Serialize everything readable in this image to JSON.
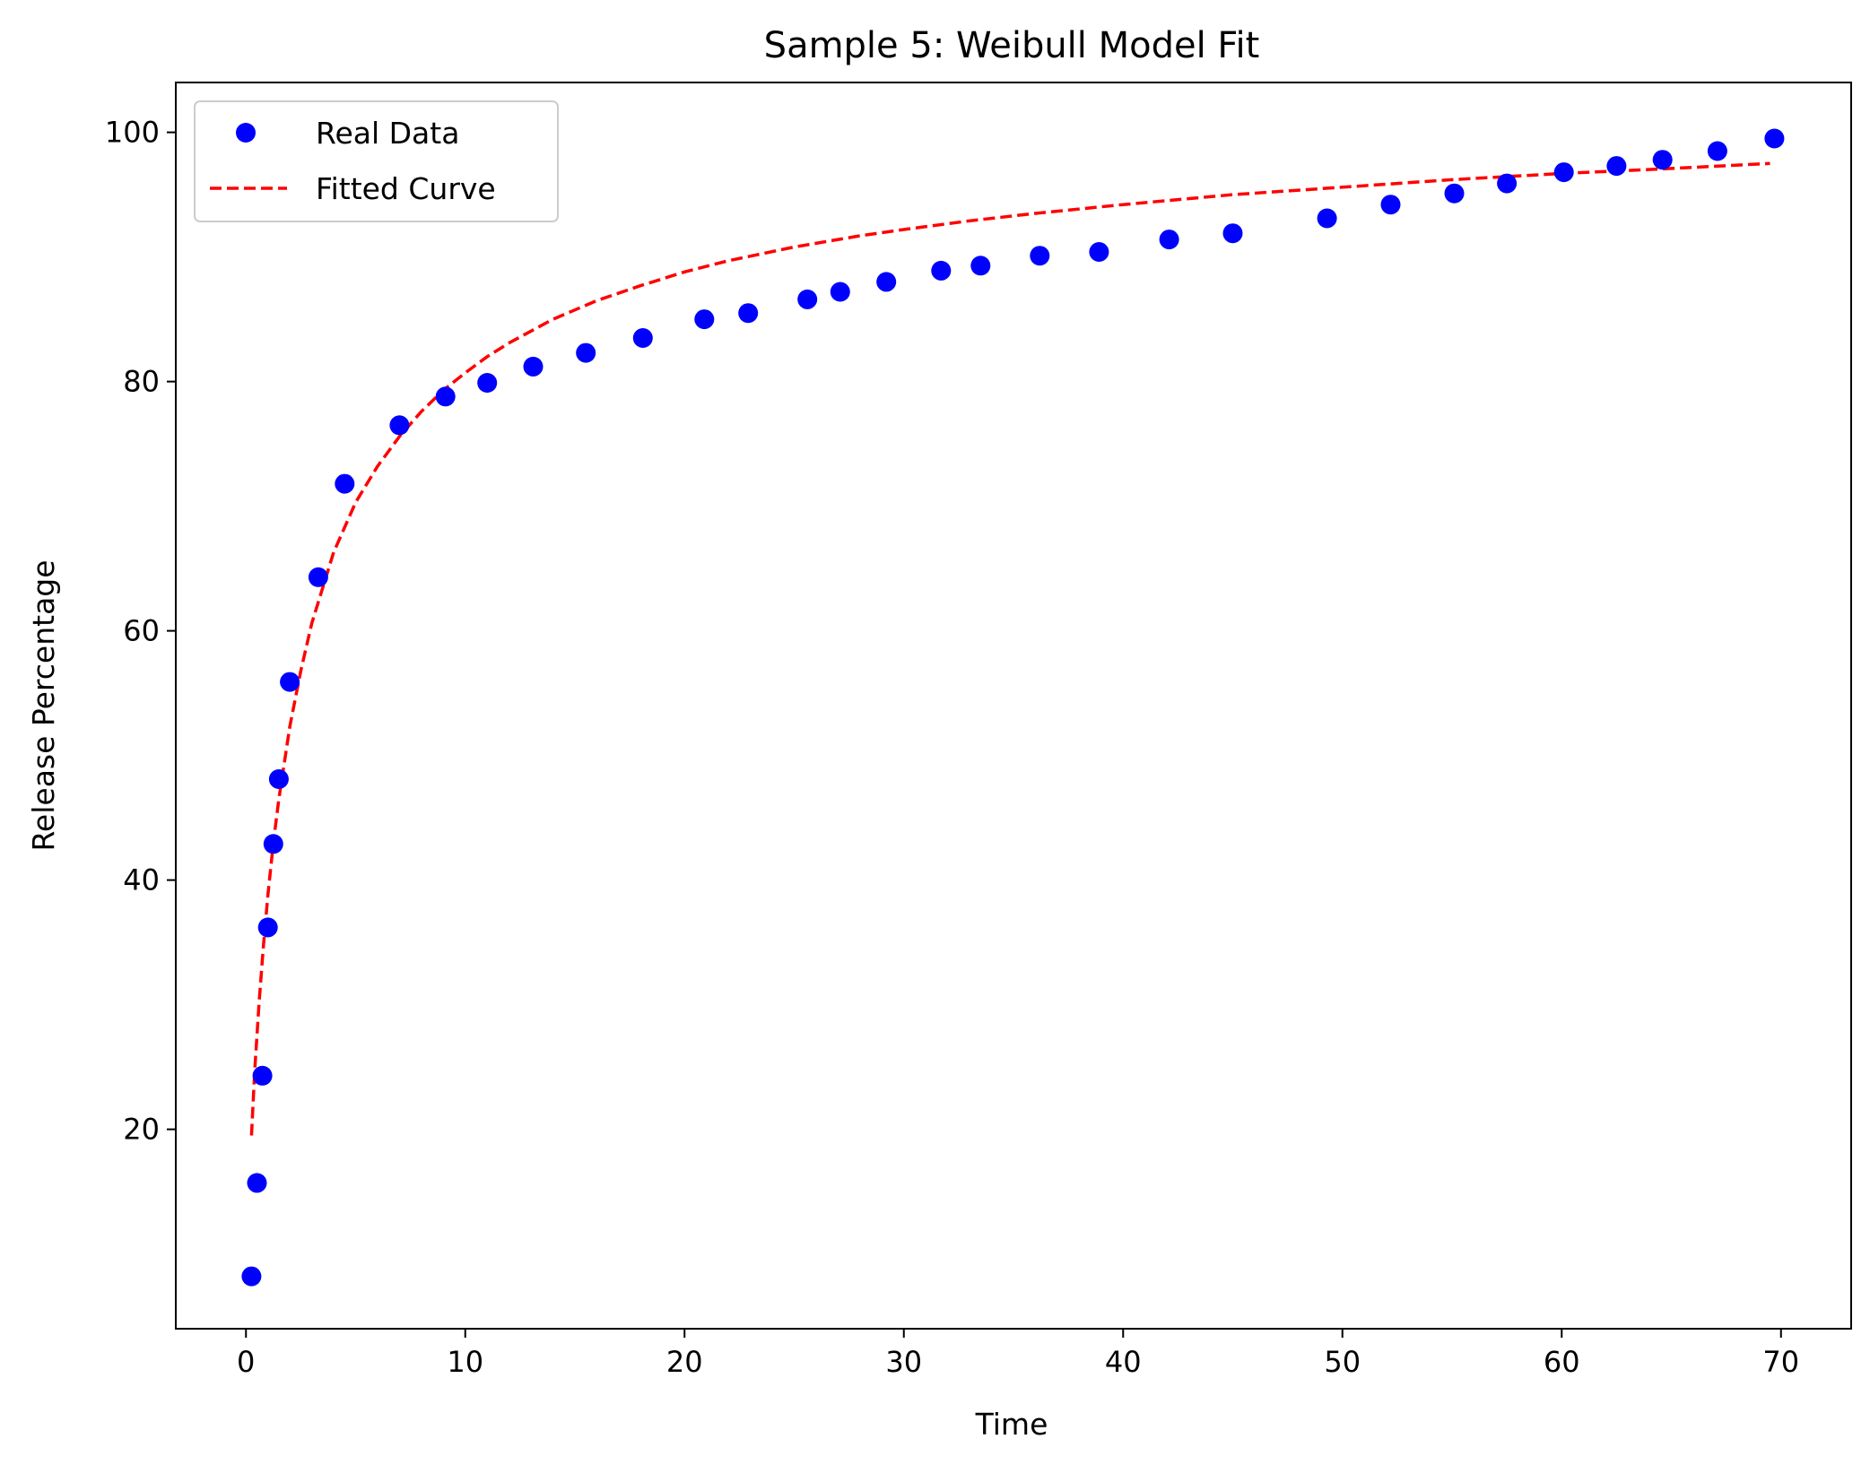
{
  "chart_data": {
    "type": "scatter",
    "title": "Sample 5: Weibull Model Fit",
    "xlabel": "Time",
    "ylabel": "Release Percentage",
    "xlim": [
      -3.2,
      73.2
    ],
    "ylim": [
      4.0,
      104.0
    ],
    "x_ticks": [
      0,
      10,
      20,
      30,
      40,
      50,
      60,
      70
    ],
    "y_ticks": [
      20,
      40,
      60,
      80,
      100
    ],
    "grid": false,
    "legend_position": "upper left",
    "series": [
      {
        "name": "Real Data",
        "kind": "points",
        "color": "#0000ff",
        "x": [
          0.25,
          0.5,
          0.75,
          1.0,
          1.25,
          1.5,
          2.0,
          3.3,
          4.5,
          7.0,
          9.1,
          11.0,
          13.1,
          15.5,
          18.1,
          20.9,
          22.9,
          25.6,
          27.1,
          29.2,
          31.7,
          33.5,
          36.2,
          38.9,
          42.1,
          45.0,
          49.3,
          52.2,
          55.1,
          57.5,
          60.1,
          62.5,
          64.6,
          67.1,
          69.7
        ],
        "y": [
          8.2,
          15.7,
          24.3,
          36.2,
          42.9,
          48.1,
          55.9,
          64.3,
          71.8,
          76.5,
          78.8,
          79.9,
          81.2,
          82.3,
          83.5,
          85.0,
          85.5,
          86.6,
          87.2,
          88.0,
          88.9,
          89.3,
          90.1,
          90.4,
          91.4,
          91.9,
          93.1,
          94.2,
          95.1,
          95.9,
          96.8,
          97.3,
          97.8,
          98.5,
          99.5
        ]
      },
      {
        "name": "Fitted Curve",
        "kind": "dashed-line",
        "color": "#ff0000",
        "x": [
          0.25,
          0.4,
          0.6,
          0.8,
          1.0,
          1.25,
          1.5,
          2.0,
          2.5,
          3.0,
          4.0,
          5.0,
          6.0,
          7.0,
          8.0,
          9.0,
          10.0,
          11.0,
          12.0,
          14.0,
          16.0,
          18.0,
          20.0,
          22.0,
          25.0,
          28.0,
          30.0,
          33.0,
          36.0,
          40.0,
          45.0,
          50.0,
          55.0,
          60.0,
          65.0,
          69.5
        ],
        "y": [
          19.5,
          24.7,
          30.2,
          34.8,
          38.8,
          43.0,
          46.5,
          52.3,
          56.8,
          60.6,
          66.3,
          70.3,
          73.2,
          75.6,
          77.6,
          79.3,
          80.7,
          82.0,
          83.1,
          85.0,
          86.5,
          87.7,
          88.8,
          89.7,
          90.8,
          91.7,
          92.2,
          92.9,
          93.5,
          94.2,
          95.0,
          95.6,
          96.2,
          96.7,
          97.1,
          97.5
        ]
      }
    ]
  }
}
